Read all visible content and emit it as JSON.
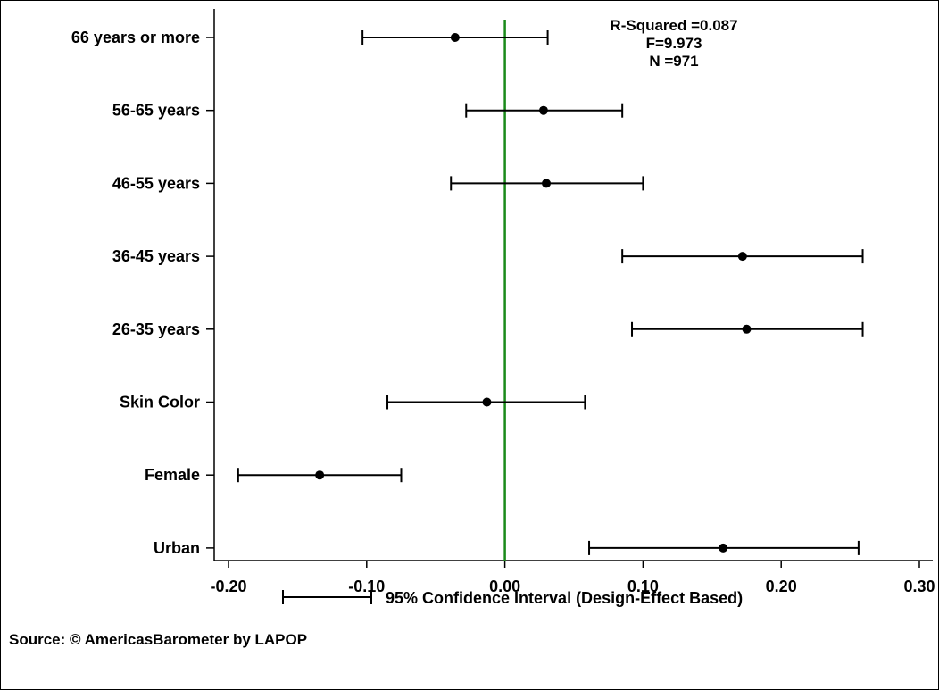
{
  "chart_data": {
    "type": "coefficient-plot",
    "title": "",
    "xlabel": "",
    "ylabel": "",
    "xlim": [
      -0.2,
      0.3
    ],
    "x_ticks": [
      -0.2,
      -0.1,
      0.0,
      0.1,
      0.2,
      0.3
    ],
    "x_tick_labels": [
      "-0.20",
      "-0.10",
      "0.00",
      "0.10",
      "0.20",
      "0.30"
    ],
    "reference_line": {
      "x": 0.0,
      "color": "#1a8a1a"
    },
    "grid": false,
    "series": [
      {
        "values": [
          {
            "category": "66 years or more",
            "estimate": -0.036,
            "lower": -0.103,
            "upper": 0.031
          },
          {
            "category": "56-65 years",
            "estimate": 0.028,
            "lower": -0.028,
            "upper": 0.085
          },
          {
            "category": "46-55 years",
            "estimate": 0.03,
            "lower": -0.039,
            "upper": 0.1
          },
          {
            "category": "36-45 years",
            "estimate": 0.172,
            "lower": 0.085,
            "upper": 0.259
          },
          {
            "category": "26-35 years",
            "estimate": 0.175,
            "lower": 0.092,
            "upper": 0.259
          },
          {
            "category": "Skin Color",
            "estimate": -0.013,
            "lower": -0.085,
            "upper": 0.058
          },
          {
            "category": "Female",
            "estimate": -0.134,
            "lower": -0.193,
            "upper": -0.075
          },
          {
            "category": "Urban",
            "estimate": 0.158,
            "lower": 0.061,
            "upper": 0.256
          }
        ]
      }
    ],
    "stats": [
      "R-Squared =0.087",
      "F=9.973",
      "N =971"
    ],
    "legend": {
      "label": "95% Confidence Interval (Design-Effect Based)",
      "placement": "bottom"
    },
    "source": "Source: © AmericasBarometer by LAPOP"
  }
}
